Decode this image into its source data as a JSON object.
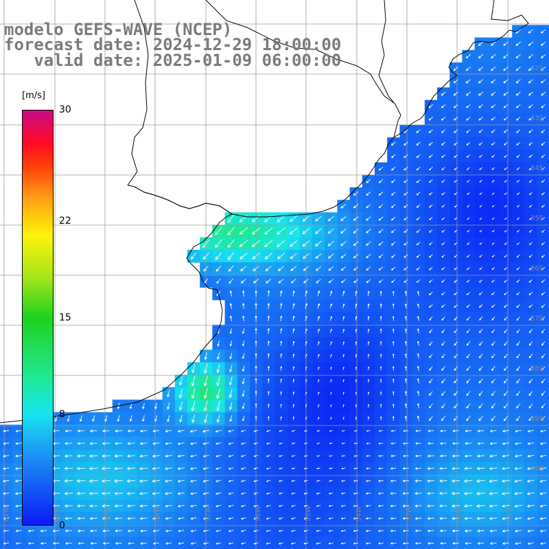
{
  "title": {
    "line1": "modelo GEFS-WAVE (NCEP)",
    "line2": "forecast date: 2024-12-29 18:00:00",
    "line3": "   valid date: 2025-01-09 06:00:00"
  },
  "colorbar": {
    "unit": "[m/s]",
    "min": 0,
    "max": 30,
    "ticks": [
      "30",
      "22",
      "15",
      "8",
      "0"
    ],
    "tick_values": [
      30,
      22,
      15,
      8,
      0
    ]
  },
  "map": {
    "lon_range": [
      -61,
      -50
    ],
    "lat_range": [
      -40,
      -32
    ],
    "lat_labels": [
      "32S",
      "33S",
      "34S",
      "35S",
      "36S",
      "37S",
      "38S",
      "39S",
      "40S"
    ],
    "lon_labels": [
      "61W",
      "60W",
      "59W",
      "58W",
      "57W",
      "56W",
      "55W",
      "54W",
      "53W",
      "52W",
      "51W"
    ],
    "colors": {
      "land": "#ffffff",
      "coast": "#000000",
      "grid": "#9a9a9a",
      "arrow": "#ffffff"
    }
  }
}
